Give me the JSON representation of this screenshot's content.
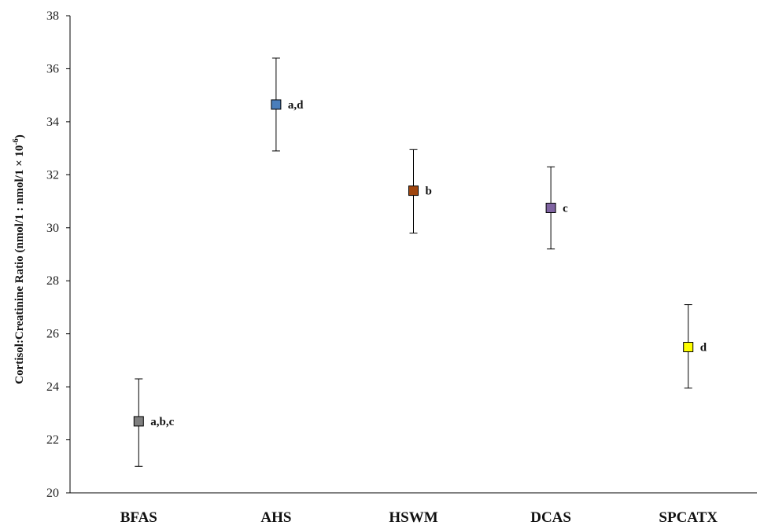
{
  "chart_data": {
    "type": "scatter",
    "title": "",
    "xlabel": "",
    "ylabel": {
      "main": "Cortisol:Creatinine Ratio (nmol/1 : nmol/1 × 10",
      "superscript": "-6",
      "close": ")"
    },
    "ylim": [
      20,
      38
    ],
    "yticks": [
      20,
      22,
      24,
      26,
      28,
      30,
      32,
      34,
      36,
      38
    ],
    "grid": false,
    "legend": "none",
    "categories": [
      "BFAS",
      "AHS",
      "HSWM",
      "DCAS",
      "SPCATX"
    ],
    "points": [
      {
        "category": "BFAS",
        "value": 22.7,
        "err_low": 21.0,
        "err_high": 24.3,
        "color": "#7f7f7f",
        "annotation": "a,b,c"
      },
      {
        "category": "AHS",
        "value": 34.65,
        "err_low": 32.9,
        "err_high": 36.4,
        "color": "#4a7ebb",
        "annotation": "a,d"
      },
      {
        "category": "HSWM",
        "value": 31.4,
        "err_low": 29.8,
        "err_high": 32.95,
        "color": "#a0460f",
        "annotation": "b"
      },
      {
        "category": "DCAS",
        "value": 30.75,
        "err_low": 29.2,
        "err_high": 32.3,
        "color": "#8064a2",
        "annotation": "c"
      },
      {
        "category": "SPCATX",
        "value": 25.5,
        "err_low": 23.95,
        "err_high": 27.1,
        "color": "#ffff00",
        "annotation": "d"
      }
    ]
  }
}
